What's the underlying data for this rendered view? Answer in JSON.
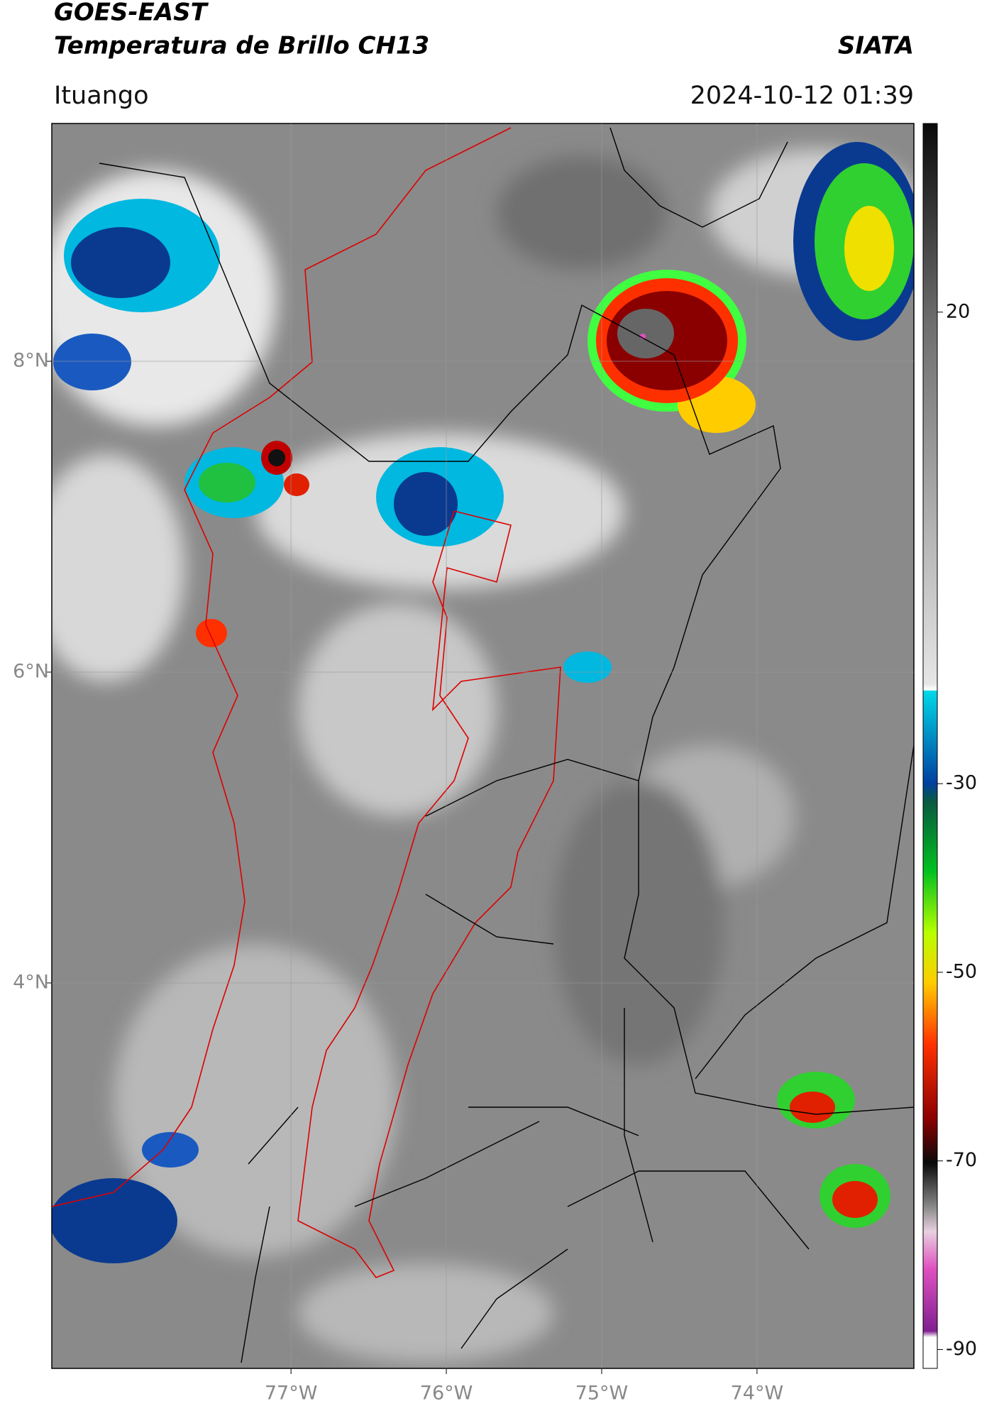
{
  "map": {
    "title": "GOES-EAST",
    "subtitle": "Temperatura de Brillo CH13",
    "source": "SIATA",
    "region": "Ituango",
    "datetime": "2024-10-12 01:39",
    "xlim": [
      -78.54,
      -72.99
    ],
    "ylim": [
      1.52,
      9.53
    ],
    "xticks": [
      {
        "value": -77,
        "label": "77°W"
      },
      {
        "value": -76,
        "label": "76°W"
      },
      {
        "value": -75,
        "label": "75°W"
      },
      {
        "value": -74,
        "label": "74°W"
      }
    ],
    "yticks": [
      {
        "value": 8,
        "label": "8°N"
      },
      {
        "value": 6,
        "label": "6°N"
      },
      {
        "value": 4,
        "label": "4°N"
      }
    ],
    "colorbar": {
      "lim": [
        40,
        -92
      ],
      "ticks": [
        20,
        -30,
        -50,
        -70,
        -90
      ]
    }
  }
}
